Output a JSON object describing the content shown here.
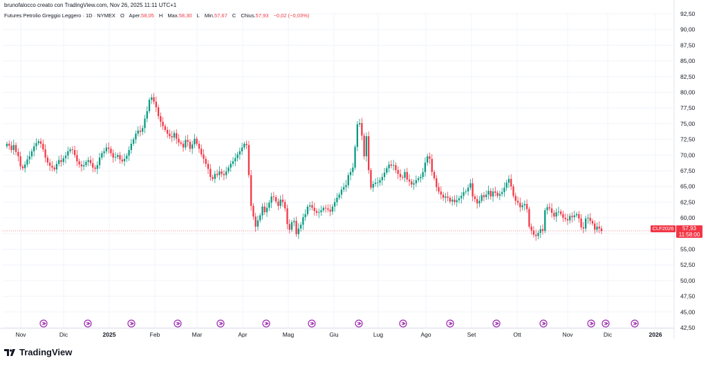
{
  "header": {
    "author_line": "brunofalocco creato con TradingView.com, Nov 26, 2025 11:11 UTC+1"
  },
  "legend": {
    "symbol_desc": "Futures Petrolio Greggio Leggero · 1D · NYMEX",
    "open_label": "O",
    "open_key": "Aper.",
    "open_value": "58,05",
    "high_key": "H",
    "high_label": "Max.",
    "high_value": "58,30",
    "low_key": "L",
    "low_label": "Min.",
    "low_value": "57,67",
    "close_key": "C",
    "close_label": "Chius.",
    "close_value": "57,93",
    "change_value": "−0,02 (−0,03%)"
  },
  "price_tag": {
    "symbol": "CLF2026",
    "price": "57,93",
    "countdown": "11:58:00"
  },
  "footer": {
    "brand": "TradingView"
  },
  "colors": {
    "up": "#089981",
    "down": "#f23645",
    "grid": "#f0f3fa",
    "event_icon": "#9c27b0"
  },
  "chart_data": {
    "type": "candlestick",
    "title": "Futures Petrolio Greggio Leggero · 1D · NYMEX",
    "ylim": [
      42.5,
      92.5
    ],
    "y_ticks": [
      "92,50",
      "90,00",
      "87,50",
      "85,00",
      "82,50",
      "80,00",
      "77,50",
      "75,00",
      "72,50",
      "70,00",
      "67,50",
      "65,00",
      "62,50",
      "60,00",
      "57,50",
      "55,00",
      "52,50",
      "50,00",
      "47,50",
      "45,00",
      "42,50"
    ],
    "x_ticks": [
      "Nov",
      "Dic",
      "2025",
      "Feb",
      "Mar",
      "Apr",
      "Mag",
      "Giu",
      "Lug",
      "Ago",
      "Set",
      "Ott",
      "Nov",
      "Dic",
      "2026"
    ],
    "last_price": 57.93,
    "close_series": [
      71.8,
      71.5,
      70.8,
      71.6,
      70.5,
      69.8,
      68.2,
      67.9,
      68.5,
      69.3,
      69.8,
      70.6,
      71.4,
      71.9,
      72.2,
      71.8,
      70.9,
      69.6,
      68.8,
      68.3,
      68.0,
      67.7,
      68.6,
      69.2,
      68.9,
      69.5,
      69.9,
      70.6,
      70.9,
      70.8,
      70.0,
      69.0,
      68.5,
      68.2,
      68.4,
      68.9,
      69.2,
      68.7,
      68.0,
      67.8,
      68.4,
      69.6,
      70.3,
      70.6,
      71.2,
      71.0,
      70.3,
      69.6,
      69.7,
      70.0,
      69.3,
      69.0,
      69.4,
      69.9,
      70.8,
      71.8,
      72.5,
      73.4,
      73.9,
      73.7,
      74.3,
      75.8,
      77.0,
      78.8,
      79.2,
      78.5,
      77.6,
      76.2,
      75.3,
      74.6,
      74.0,
      73.4,
      73.0,
      72.8,
      73.5,
      72.6,
      72.0,
      71.8,
      71.2,
      72.4,
      72.1,
      71.0,
      71.7,
      72.6,
      71.8,
      71.0,
      70.1,
      69.4,
      68.6,
      67.8,
      66.5,
      66.2,
      67.0,
      66.8,
      67.4,
      67.0,
      66.8,
      67.4,
      68.0,
      68.6,
      69.0,
      69.5,
      70.1,
      70.6,
      71.2,
      71.8,
      71.6,
      66.8,
      61.9,
      60.2,
      58.6,
      59.6,
      60.4,
      61.8,
      60.9,
      61.6,
      62.4,
      63.4,
      63.3,
      62.6,
      61.9,
      62.9,
      62.5,
      61.5,
      59.0,
      58.1,
      59.3,
      59.5,
      57.4,
      58.3,
      58.9,
      60.1,
      60.6,
      61.8,
      62.0,
      61.6,
      61.1,
      60.8,
      60.9,
      61.2,
      61.6,
      61.5,
      61.3,
      61.0,
      61.8,
      62.5,
      63.2,
      63.7,
      64.5,
      64.9,
      65.2,
      66.8,
      67.3,
      68.0,
      71.3,
      74.9,
      75.1,
      73.1,
      69.8,
      73.0,
      67.6,
      64.8,
      65.4,
      65.6,
      65.6,
      66.0,
      66.5,
      67.2,
      67.9,
      68.5,
      68.3,
      68.4,
      67.6,
      67.0,
      66.5,
      66.4,
      67.3,
      66.1,
      65.8,
      65.3,
      65.5,
      66.0,
      66.3,
      66.5,
      67.3,
      68.8,
      69.8,
      69.4,
      67.3,
      66.3,
      64.9,
      64.2,
      63.7,
      63.2,
      63.4,
      63.2,
      62.6,
      62.9,
      62.5,
      62.8,
      63.1,
      63.5,
      64.1,
      64.2,
      64.8,
      65.5,
      63.4,
      63.0,
      62.3,
      62.7,
      63.6,
      63.3,
      63.7,
      64.3,
      63.4,
      64.2,
      64.0,
      63.5,
      63.8,
      64.1,
      64.8,
      65.6,
      66.2,
      65.0,
      63.5,
      62.7,
      62.4,
      61.7,
      62.0,
      62.2,
      61.4,
      58.6,
      58.0,
      57.3,
      57.1,
      57.6,
      58.2,
      57.9,
      61.2,
      61.7,
      61.5,
      60.8,
      60.2,
      60.9,
      61.0,
      60.6,
      60.0,
      59.8,
      59.6,
      60.3,
      60.1,
      60.4,
      60.6,
      59.9,
      58.5,
      58.3,
      59.9,
      60.0,
      59.5,
      59.1,
      58.1,
      58.6,
      58.3,
      57.9
    ],
    "event_markers": [
      "Nov",
      "Dic",
      "Gen",
      "Feb",
      "Mar",
      "Apr",
      "Mag",
      "Giu",
      "Lug",
      "Ago",
      "Set",
      "Ott",
      "Nov",
      "Dic",
      "Gen"
    ]
  }
}
